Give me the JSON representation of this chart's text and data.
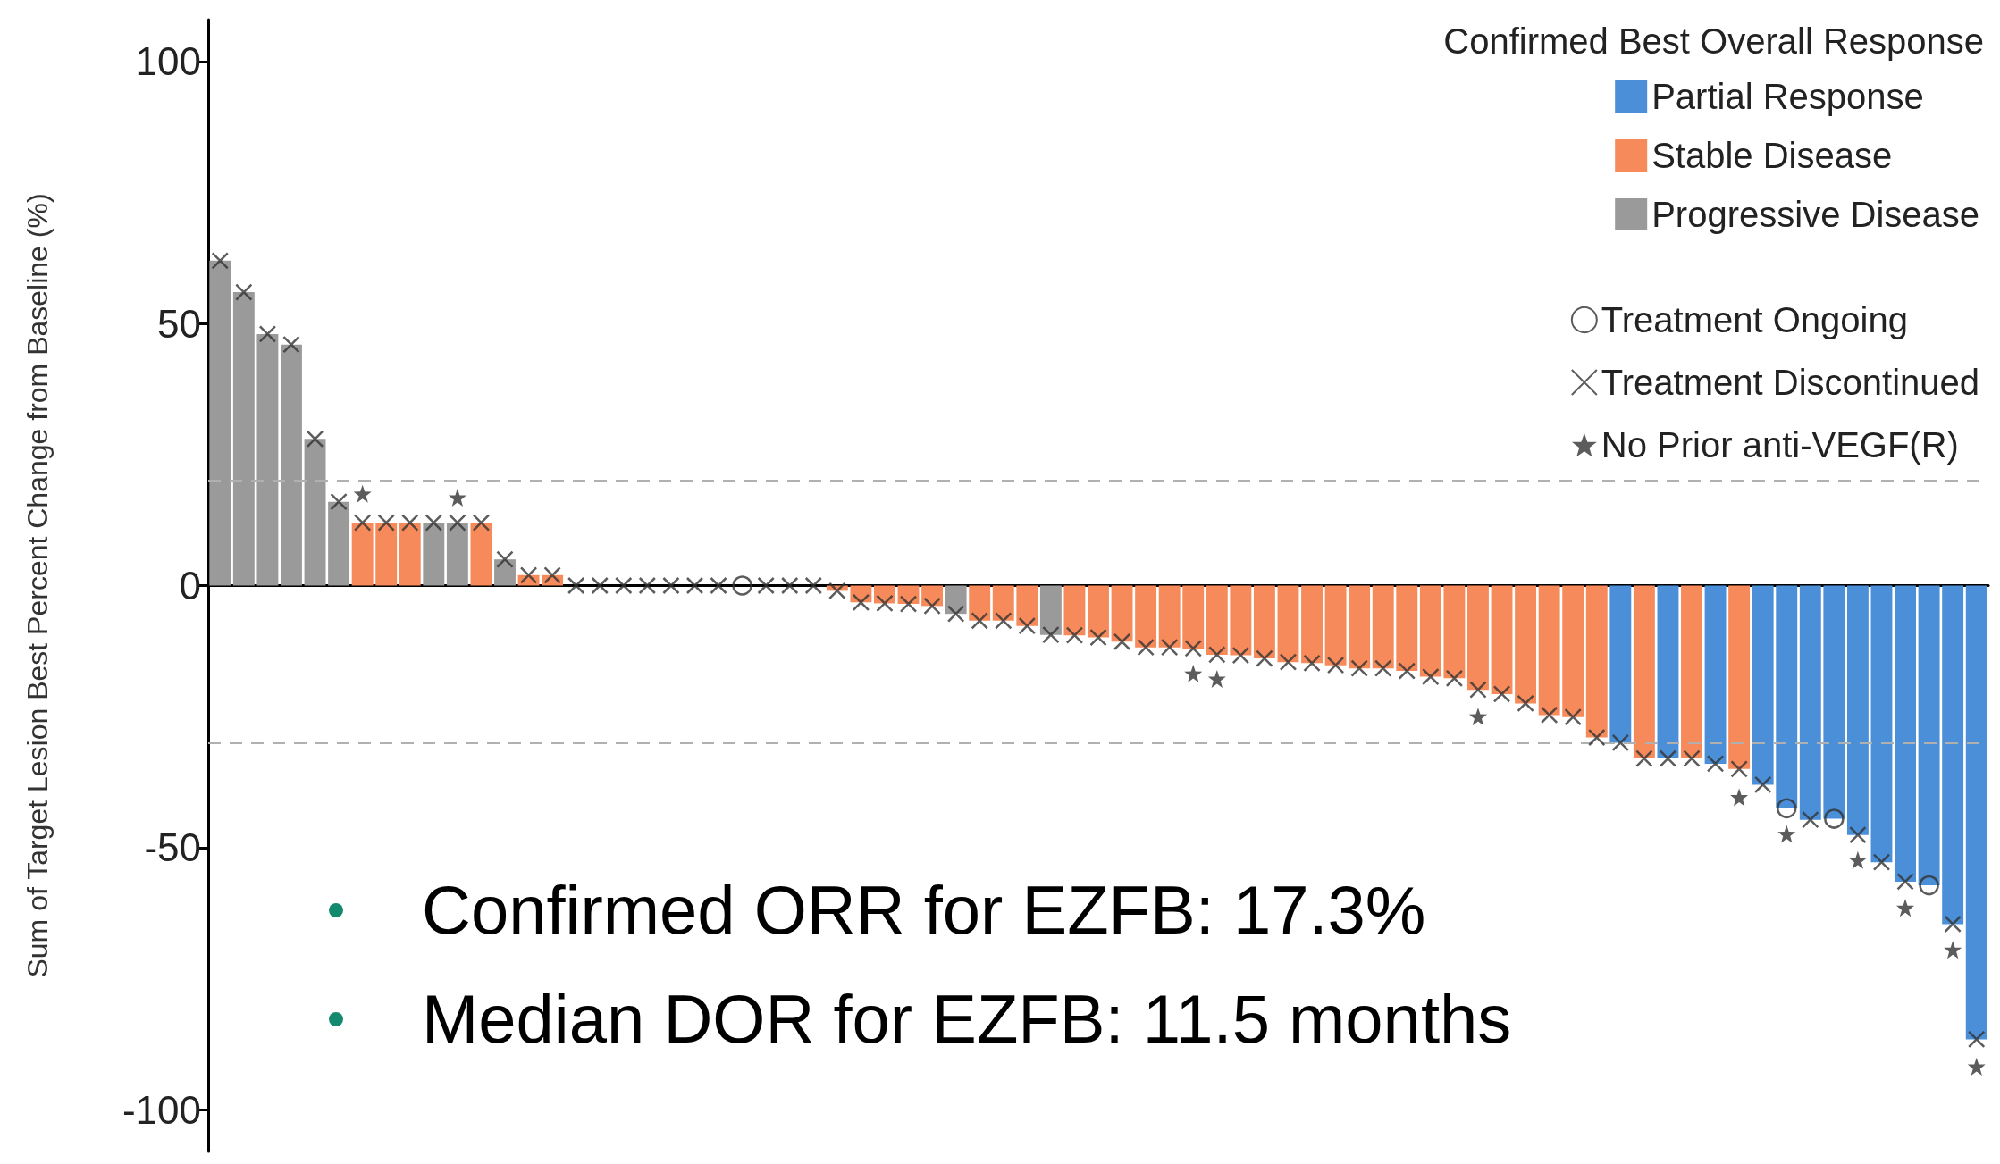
{
  "chart_data": {
    "type": "bar",
    "ylabel": "Sum of Target Lesion Best Percent Change from Baseline (%)",
    "legend_title": "Confirmed Best Overall Response",
    "legend": "top right",
    "categories": [
      null,
      null,
      null,
      null,
      null,
      null,
      null,
      null,
      null,
      null,
      null,
      null,
      null,
      null,
      null,
      null,
      null,
      null,
      null,
      null,
      null,
      null,
      null,
      null,
      null,
      null,
      null,
      null,
      null,
      null,
      null,
      null,
      null,
      null,
      null,
      null,
      null,
      null,
      null,
      null,
      null,
      null,
      null,
      null,
      null,
      null,
      null,
      null,
      null,
      null,
      null,
      null,
      null,
      null,
      null,
      null,
      null,
      null,
      null,
      null,
      null,
      null,
      null,
      null,
      null,
      null,
      null,
      null,
      null,
      null,
      null,
      null,
      null,
      null,
      null
    ],
    "ylim": [
      -108,
      108
    ],
    "yticks": [
      -100,
      -50,
      0,
      50,
      100
    ],
    "series": [
      {
        "name": "Partial Response",
        "color": "#4a8fd8",
        "values": [
          null,
          null,
          null,
          null,
          null,
          null,
          null,
          null,
          null,
          null,
          null,
          null,
          null,
          null,
          null,
          null,
          null,
          null,
          null,
          null,
          null,
          null,
          null,
          null,
          null,
          null,
          null,
          null,
          null,
          null,
          null,
          null,
          null,
          null,
          null,
          null,
          null,
          null,
          null,
          null,
          null,
          null,
          null,
          null,
          null,
          null,
          null,
          null,
          null,
          null,
          null,
          null,
          null,
          null,
          null,
          null,
          null,
          null,
          null,
          -30,
          null,
          -33,
          null,
          -34,
          null,
          -38,
          -42.5,
          -44.7,
          -44.5,
          -47.6,
          -52.8,
          -56.5,
          -57.2,
          -64.6,
          -86.6
        ]
      },
      {
        "name": "Stable Disease",
        "color": "#f78a5a",
        "values": [
          null,
          null,
          null,
          null,
          null,
          null,
          12,
          12,
          12,
          null,
          null,
          12,
          null,
          2,
          2,
          0,
          0,
          0,
          0,
          0,
          0,
          0,
          0,
          0,
          0,
          0,
          -1,
          -3.2,
          -3.4,
          -3.5,
          -3.9,
          null,
          -6.7,
          -6.7,
          -7.7,
          null,
          -9.5,
          -9.9,
          -10.7,
          -11.8,
          -11.8,
          -12,
          -13.2,
          -13.3,
          -13.9,
          -14.6,
          -14.8,
          -15.2,
          -15.8,
          -15.8,
          -16.3,
          -17.4,
          -17.7,
          -19.9,
          -20.7,
          -22.5,
          -24.7,
          -25.1,
          -29,
          null,
          -33,
          null,
          -33,
          null,
          -35,
          null,
          null,
          null,
          null,
          null,
          null,
          null,
          null,
          null,
          null
        ]
      },
      {
        "name": "Progressive Disease",
        "color": "#9a9a9a",
        "values": [
          62,
          56,
          48,
          46,
          28,
          16,
          null,
          null,
          null,
          12,
          12,
          null,
          5,
          null,
          null,
          null,
          null,
          null,
          null,
          null,
          null,
          null,
          null,
          null,
          null,
          null,
          null,
          null,
          null,
          null,
          null,
          -5.4,
          null,
          null,
          null,
          -9.4,
          null,
          null,
          null,
          null,
          null,
          null,
          null,
          null,
          null,
          null,
          null,
          null,
          null,
          null,
          null,
          null,
          null,
          null,
          null,
          null,
          null,
          null,
          null,
          null,
          null,
          null,
          null,
          null,
          null,
          null,
          null,
          null,
          null,
          null,
          null,
          null,
          null,
          null,
          null
        ]
      },
      {
        "name": "Treatment Ongoing",
        "type": "scatter",
        "marker": "circle",
        "color": "#333333",
        "values": [
          null,
          null,
          null,
          null,
          null,
          null,
          null,
          null,
          null,
          null,
          null,
          null,
          null,
          null,
          null,
          null,
          null,
          null,
          null,
          null,
          null,
          null,
          0,
          null,
          null,
          null,
          null,
          null,
          null,
          null,
          null,
          null,
          null,
          null,
          null,
          null,
          null,
          null,
          null,
          null,
          null,
          null,
          null,
          null,
          null,
          null,
          null,
          null,
          null,
          null,
          null,
          null,
          null,
          null,
          null,
          null,
          null,
          null,
          null,
          null,
          null,
          null,
          null,
          null,
          null,
          null,
          -42.5,
          null,
          -44.5,
          null,
          null,
          null,
          -57.2,
          null,
          null
        ]
      },
      {
        "name": "Treatment Discontinued",
        "type": "scatter",
        "marker": "cross",
        "color": "#333333",
        "values": [
          62,
          56,
          48,
          46,
          28,
          16,
          12,
          12,
          12,
          12,
          12,
          12,
          5,
          2,
          2,
          0,
          0,
          0,
          0,
          0,
          0,
          0,
          null,
          0,
          0,
          0,
          -1,
          -3.2,
          -3.4,
          -3.5,
          -3.9,
          -5.4,
          -6.7,
          -6.7,
          -7.7,
          -9.4,
          -9.5,
          -9.9,
          -10.7,
          -11.8,
          -11.8,
          -12,
          -13.2,
          -13.3,
          -13.9,
          -14.6,
          -14.8,
          -15.2,
          -15.8,
          -15.8,
          -16.3,
          -17.4,
          -17.7,
          -19.9,
          -20.7,
          -22.5,
          -24.7,
          -25.1,
          -29,
          -30,
          -33,
          -33,
          -33,
          -34,
          -35,
          -38,
          null,
          -44.7,
          null,
          -47.6,
          -52.8,
          -56.5,
          null,
          -64.6,
          -86.6
        ]
      },
      {
        "name": "No Prior anti-VEGF(R)",
        "type": "scatter",
        "marker": "star",
        "color": "#333333",
        "values": [
          null,
          null,
          null,
          null,
          null,
          null,
          17.5,
          null,
          null,
          null,
          16.8,
          null,
          null,
          null,
          null,
          null,
          null,
          null,
          null,
          null,
          null,
          null,
          null,
          null,
          null,
          null,
          null,
          null,
          null,
          null,
          null,
          null,
          null,
          null,
          null,
          null,
          null,
          null,
          null,
          null,
          null,
          -16.8,
          -17.8,
          null,
          null,
          null,
          null,
          null,
          null,
          null,
          null,
          null,
          null,
          -25,
          null,
          null,
          null,
          null,
          null,
          null,
          null,
          null,
          null,
          null,
          -40.4,
          null,
          -47.4,
          null,
          null,
          -52.4,
          null,
          -61.5,
          null,
          -69.5,
          -91.8
        ]
      }
    ],
    "ref_lines": [
      {
        "axis": "y",
        "value": 20,
        "color": "#b0b0b0",
        "line_style": "dashed"
      },
      {
        "axis": "y",
        "value": -30,
        "color": "#b0b0b0",
        "line_style": "dashed"
      }
    ],
    "annotations": [
      "Confirmed ORR for EZFB: 17.3%",
      "Median DOR for EZFB: 11.5 months"
    ]
  }
}
